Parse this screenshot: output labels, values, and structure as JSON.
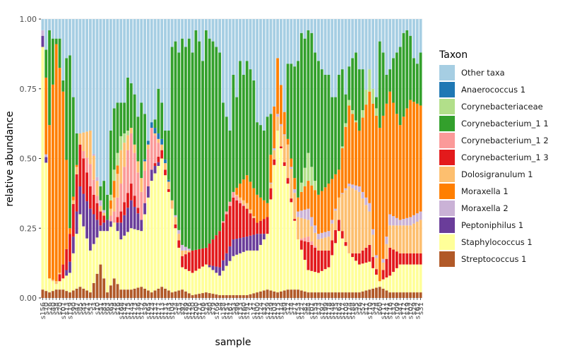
{
  "chart_data": {
    "type": "bar",
    "stacked": true,
    "xlabel": "sample",
    "ylabel": "relative abundance",
    "ylim": [
      0,
      1
    ],
    "yticks": [
      "0.00",
      "0.25",
      "0.50",
      "0.75",
      "1.00"
    ],
    "grid": true,
    "legend": {
      "title": "Taxon",
      "position": "right"
    },
    "colors": {
      "Other taxa": "#a6cee3",
      "Anaerococcus 1": "#1f78b4",
      "Corynebacteriaceae": "#b2df8a",
      "Corynebacterium_1 1": "#33a02c",
      "Corynebacterium_1 2": "#fb9a99",
      "Corynebacterium_1 3": "#e31a1c",
      "Dolosigranulum 1": "#fdbf6f",
      "Moraxella 1": "#ff7f00",
      "Moraxella 2": "#cab2d6",
      "Peptoniphilus 1": "#6a3d9a",
      "Staphylococcus 1": "#ffff99",
      "Streptococcus 1": "#b15928"
    },
    "legend_order": [
      "Other taxa",
      "Anaerococcus 1",
      "Corynebacteriaceae",
      "Corynebacterium_1 1",
      "Corynebacterium_1 2",
      "Corynebacterium_1 3",
      "Dolosigranulum 1",
      "Moraxella 1",
      "Moraxella 2",
      "Peptoniphilus 1",
      "Staphylococcus 1",
      "Streptococcus 1"
    ],
    "categories": [
      "s156",
      "s70",
      "s26",
      "s40",
      "s58",
      "s20",
      "s107",
      "s13",
      "s119",
      "s90",
      "s47",
      "s85",
      "s45",
      "s21",
      "s57",
      "s3",
      "s10",
      "s51",
      "s83",
      "s63",
      "s65",
      "s28",
      "s16",
      "s168",
      "s142",
      "s175",
      "s145",
      "s173",
      "s136",
      "s172",
      "s39",
      "s165",
      "s123",
      "s137",
      "s177",
      "s113",
      "s131",
      "s143",
      "s104",
      "s34",
      "s15",
      "s92",
      "s189",
      "s126",
      "s130",
      "s200",
      "s121",
      "s106",
      "s25",
      "s80",
      "s79",
      "s166",
      "s4",
      "s158",
      "s151",
      "s167",
      "s53",
      "s96",
      "s133",
      "s160",
      "s191",
      "s7",
      "s147",
      "s100",
      "s124",
      "s37",
      "s159",
      "s149",
      "s103",
      "s115",
      "s114",
      "s89",
      "s12",
      "s74",
      "s71",
      "s153",
      "s127",
      "s82",
      "s84",
      "s101",
      "s155",
      "s73",
      "s197",
      "s199",
      "s178",
      "s148",
      "s135",
      "s162",
      "s117",
      "s108",
      "s174",
      "s188",
      "s55",
      "s76",
      "s52",
      "s11",
      "s170",
      "s43",
      "s78",
      "s60",
      "s111",
      "s141",
      "s116",
      "s32",
      "s109",
      "s41",
      "s112",
      "s19",
      "s102",
      "s29",
      "s162",
      "s31"
    ],
    "xtick_labels": [
      "s156",
      "s70",
      "s26",
      "s40",
      "s58",
      "s20",
      "s107",
      "s13",
      "s119",
      "s90",
      "s47",
      "s85",
      "s45",
      "s21",
      "s57",
      "s3",
      "s10",
      "s51",
      "s83",
      "s63",
      "s65",
      "s28",
      "s16",
      "s168",
      "s142",
      "s175",
      "s145",
      "s173",
      "s136",
      "s172",
      "s39",
      "s165",
      "s123",
      "s137",
      "s177",
      "s113",
      "s131",
      "s143",
      "s104",
      "s34",
      "s15",
      "s92",
      "s189",
      "s126",
      "s130",
      "s200",
      "s121",
      "s106",
      "s25",
      "s80",
      "s79",
      "s166",
      "s4",
      "s158",
      "s151",
      "s167",
      "s53",
      "s96",
      "s133",
      "s160",
      "s191",
      "s7",
      "s147",
      "s100",
      "s124",
      "s37",
      "s159",
      "s149",
      "s103",
      "s115",
      "s114",
      "s89",
      "s12",
      "s74",
      "s71",
      "s153",
      "s127",
      "s82",
      "s84",
      "s101",
      "s155",
      "s73",
      "s197",
      "s199",
      "s178",
      "s148",
      "s135",
      "s162",
      "s117",
      "s108",
      "s174",
      "s188",
      "s55",
      "s76",
      "s52",
      "s11",
      "s170",
      "s43",
      "s78",
      "s60",
      "s111",
      "s141",
      "s116",
      "s32",
      "s109",
      "s41",
      "s112",
      "s19",
      "s102",
      "s29",
      "s162",
      "s31"
    ],
    "keyframes": [
      [
        0,
        0.03,
        0.87,
        0.04,
        0.0,
        0.0,
        0.0,
        0.02,
        0.0,
        0.0,
        0.0,
        0.0,
        0.0,
        0.0
      ],
      [
        2,
        0.02,
        0.05,
        0.0,
        0.0,
        0.0,
        0.0,
        0.0,
        0.55,
        0.0,
        0.0,
        0.0,
        0.0,
        0.0
      ],
      [
        4,
        0.03,
        0.02,
        0.0,
        0.0,
        0.0,
        0.01,
        0.0,
        0.85,
        0.0,
        0.0,
        0.03,
        0.0,
        0.0
      ],
      [
        6,
        0.03,
        0.04,
        0.0,
        0.05,
        0.0,
        0.0,
        0.0,
        0.62,
        0.0,
        0.0,
        0.14,
        0.02,
        0.0
      ],
      [
        8,
        0.02,
        0.07,
        0.04,
        0.1,
        0.0,
        0.0,
        0.0,
        0.02,
        0.0,
        0.0,
        0.08,
        0.0,
        0.07
      ],
      [
        11,
        0.04,
        0.26,
        0.1,
        0.15,
        0.0,
        0.04,
        0.0,
        0.0,
        0.0,
        0.0,
        0.0,
        0.0,
        0.28
      ],
      [
        14,
        0.02,
        0.15,
        0.15,
        0.08,
        0.08,
        0.12,
        0.0,
        0.0,
        0.0,
        0.0,
        0.0,
        0.01,
        0.2
      ],
      [
        17,
        0.12,
        0.12,
        0.02,
        0.05,
        0.0,
        0.02,
        0.02,
        0.0,
        0.0,
        0.0,
        0.0,
        0.02,
        0.63
      ],
      [
        19,
        0.02,
        0.22,
        0.04,
        0.0,
        0.0,
        0.0,
        0.0,
        0.0,
        0.0,
        0.0,
        0.0,
        0.0,
        0.62
      ],
      [
        21,
        0.07,
        0.2,
        0.0,
        0.0,
        0.04,
        0.05,
        0.0,
        0.06,
        0.04,
        0.0,
        0.06,
        0.0,
        0.6
      ],
      [
        23,
        0.03,
        0.18,
        0.06,
        0.04,
        0.1,
        0.12,
        0.0,
        0.0,
        0.05,
        0.0,
        0.0,
        0.0,
        0.42
      ],
      [
        26,
        0.03,
        0.22,
        0.1,
        0.06,
        0.18,
        0.02,
        0.0,
        0.0,
        0.0,
        0.0,
        0.0,
        0.01,
        0.38
      ],
      [
        29,
        0.04,
        0.2,
        0.04,
        0.0,
        0.1,
        0.05,
        0.0,
        0.0,
        0.0,
        0.0,
        0.0,
        0.03,
        0.54
      ],
      [
        32,
        0.02,
        0.4,
        0.04,
        0.0,
        0.15,
        0.0,
        0.0,
        0.0,
        0.0,
        0.02,
        0.0,
        0.03,
        0.34
      ],
      [
        35,
        0.04,
        0.46,
        0.0,
        0.03,
        0.0,
        0.02,
        0.0,
        0.0,
        0.0,
        0.02,
        0.0,
        0.03,
        0.4
      ],
      [
        38,
        0.02,
        0.3,
        0.0,
        0.0,
        0.0,
        0.03,
        0.0,
        0.0,
        0.0,
        0.0,
        0.0,
        0.04,
        0.61
      ],
      [
        41,
        0.03,
        0.08,
        0.0,
        0.04,
        0.0,
        0.02,
        0.02,
        0.0,
        0.0,
        0.0,
        0.0,
        0.03,
        0.78
      ],
      [
        44,
        0.01,
        0.08,
        0.0,
        0.08,
        0.0,
        0.0,
        0.0,
        0.0,
        0.0,
        0.0,
        0.0,
        0.03,
        0.8
      ],
      [
        48,
        0.02,
        0.1,
        0.0,
        0.06,
        0.0,
        0.0,
        0.0,
        0.0,
        0.0,
        0.0,
        0.0,
        0.04,
        0.78
      ],
      [
        52,
        0.01,
        0.07,
        0.03,
        0.13,
        0.0,
        0.0,
        0.0,
        0.0,
        0.0,
        0.0,
        0.0,
        0.02,
        0.74
      ],
      [
        56,
        0.01,
        0.14,
        0.06,
        0.15,
        0.02,
        0.0,
        0.0,
        0.0,
        0.0,
        0.0,
        0.0,
        0.01,
        0.61
      ],
      [
        60,
        0.01,
        0.16,
        0.05,
        0.1,
        0.0,
        0.02,
        0.0,
        0.1,
        0.0,
        0.0,
        0.0,
        0.02,
        0.54
      ],
      [
        63,
        0.02,
        0.15,
        0.06,
        0.04,
        0.0,
        0.0,
        0.0,
        0.1,
        0.0,
        0.0,
        0.0,
        0.02,
        0.61
      ],
      [
        66,
        0.03,
        0.2,
        0.0,
        0.06,
        0.0,
        0.0,
        0.0,
        0.05,
        0.0,
        0.0,
        0.0,
        0.01,
        0.65
      ],
      [
        69,
        0.02,
        0.58,
        0.0,
        0.0,
        0.0,
        0.05,
        0.01,
        0.2,
        0.0,
        0.0,
        0.0,
        0.0,
        0.14
      ],
      [
        72,
        0.03,
        0.38,
        0.0,
        0.02,
        0.0,
        0.12,
        0.0,
        0.02,
        0.0,
        0.0,
        0.0,
        0.0,
        0.43
      ],
      [
        75,
        0.03,
        0.18,
        0.0,
        0.0,
        0.0,
        0.08,
        0.02,
        0.05,
        0.0,
        0.0,
        0.0,
        0.0,
        0.64
      ],
      [
        78,
        0.02,
        0.08,
        0.0,
        0.1,
        0.02,
        0.06,
        0.04,
        0.1,
        0.1,
        0.0,
        0.0,
        0.0,
        0.48
      ],
      [
        81,
        0.02,
        0.07,
        0.0,
        0.08,
        0.0,
        0.04,
        0.02,
        0.14,
        0.0,
        0.0,
        0.0,
        0.0,
        0.63
      ],
      [
        84,
        0.02,
        0.09,
        0.0,
        0.06,
        0.0,
        0.05,
        0.02,
        0.17,
        0.0,
        0.0,
        0.0,
        0.0,
        0.59
      ],
      [
        87,
        0.02,
        0.22,
        0.0,
        0.04,
        0.0,
        0.08,
        0.0,
        0.1,
        0.0,
        0.0,
        0.0,
        0.0,
        0.54
      ],
      [
        90,
        0.02,
        0.14,
        0.0,
        0.0,
        0.0,
        0.24,
        0.01,
        0.28,
        0.02,
        0.0,
        0.0,
        0.0,
        0.29
      ],
      [
        93,
        0.02,
        0.1,
        0.0,
        0.04,
        0.0,
        0.22,
        0.02,
        0.2,
        0.0,
        0.0,
        0.0,
        0.0,
        0.4
      ],
      [
        96,
        0.03,
        0.1,
        0.0,
        0.06,
        0.0,
        0.12,
        0.03,
        0.4,
        0.08,
        0.0,
        0.0,
        0.0,
        0.18
      ],
      [
        99,
        0.04,
        0.02,
        0.0,
        0.0,
        0.0,
        0.0,
        0.0,
        0.55,
        0.0,
        0.0,
        0.08,
        0.0,
        0.31
      ],
      [
        102,
        0.02,
        0.06,
        0.0,
        0.1,
        0.0,
        0.08,
        0.04,
        0.44,
        0.0,
        0.0,
        0.0,
        0.0,
        0.26
      ],
      [
        105,
        0.02,
        0.1,
        0.0,
        0.04,
        0.0,
        0.1,
        0.02,
        0.34,
        0.0,
        0.0,
        0.0,
        0.0,
        0.38
      ],
      [
        108,
        0.02,
        0.1,
        0.0,
        0.04,
        0.0,
        0.1,
        0.03,
        0.42,
        0.0,
        0.0,
        0.0,
        0.0,
        0.29
      ],
      [
        111,
        0.02,
        0.1,
        0.0,
        0.04,
        0.0,
        0.12,
        0.03,
        0.38,
        0.0,
        0.0,
        0.0,
        0.0,
        0.31
      ]
    ],
    "per_bar_top": [
      0.92,
      0.89,
      0.96,
      0.93,
      0.93,
      0.93,
      0.78,
      0.86,
      0.87,
      0.72,
      0.59,
      0.52,
      0.48,
      0.37,
      0.37,
      0.28,
      0.3,
      0.4,
      0.42,
      0.37,
      0.6,
      0.68,
      0.7,
      0.7,
      0.7,
      0.79,
      0.77,
      0.73,
      0.65,
      0.7,
      0.66,
      0.5,
      0.6,
      0.64,
      0.75,
      0.7,
      0.6,
      0.6,
      0.9,
      0.92,
      0.88,
      0.93,
      0.9,
      0.93,
      0.88,
      0.96,
      0.92,
      0.85,
      0.96,
      0.93,
      0.92,
      0.9,
      0.88,
      0.7,
      0.65,
      0.6,
      0.8,
      0.72,
      0.85,
      0.8,
      0.85,
      0.82,
      0.78,
      0.63,
      0.62,
      0.6,
      0.65,
      0.66,
      0.55,
      0.6,
      0.61,
      0.5,
      0.84,
      0.84,
      0.83,
      0.85,
      0.95,
      0.93,
      0.96,
      0.95,
      0.88,
      0.85,
      0.82,
      0.8,
      0.8,
      0.72,
      0.72,
      0.8,
      0.82,
      0.73,
      0.83,
      0.86,
      0.88,
      0.82,
      0.82,
      0.66,
      0.75,
      0.74,
      0.72,
      0.92,
      0.88,
      0.8,
      0.82,
      0.86,
      0.88,
      0.9,
      0.95,
      0.96,
      0.94,
      0.86,
      0.84,
      0.88
    ]
  }
}
